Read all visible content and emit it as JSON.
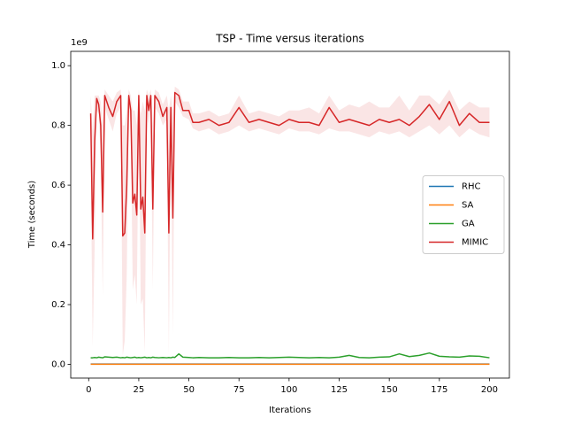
{
  "chart_data": {
    "type": "line",
    "title": "TSP - Time versus iterations",
    "x_label": "Iterations",
    "y_label": "Time (seconds)",
    "y_offset_label": "1e9",
    "xlim": [
      -8.95,
      209.95
    ],
    "xticks": [
      0,
      25,
      50,
      75,
      100,
      125,
      150,
      175,
      200
    ],
    "ylim": [
      -0.046,
      1.048
    ],
    "yticks": [
      {
        "value": 0,
        "label": "0.0"
      },
      0.2,
      0.4,
      0.6,
      0.8,
      {
        "value": 1,
        "label": "1.0"
      }
    ],
    "legend": "center right",
    "x": [
      1,
      2,
      3,
      4,
      5,
      6,
      7,
      8,
      10,
      12,
      14,
      16,
      17,
      18,
      19,
      20,
      21,
      22,
      23,
      24,
      25,
      26,
      27,
      28,
      29,
      30,
      31,
      32,
      33,
      35,
      37,
      39,
      40,
      41,
      42,
      43,
      45,
      47,
      50,
      52,
      55,
      60,
      65,
      70,
      75,
      80,
      85,
      90,
      95,
      100,
      105,
      110,
      115,
      120,
      125,
      130,
      135,
      140,
      145,
      150,
      155,
      160,
      165,
      170,
      175,
      180,
      185,
      190,
      195,
      200
    ],
    "series": [
      {
        "name": "RHC",
        "color": "#1f77b4",
        "values": [
          0.001,
          0.001,
          0.001,
          0.001,
          0.001,
          0.001,
          0.001,
          0.001,
          0.001,
          0.001,
          0.001,
          0.001,
          0.001,
          0.001,
          0.001,
          0.001,
          0.001,
          0.001,
          0.001,
          0.001,
          0.001,
          0.001,
          0.001,
          0.001,
          0.001,
          0.001,
          0.001,
          0.001,
          0.001,
          0.001,
          0.001,
          0.001,
          0.001,
          0.001,
          0.001,
          0.001,
          0.001,
          0.001,
          0.001,
          0.001,
          0.001,
          0.001,
          0.001,
          0.001,
          0.001,
          0.001,
          0.001,
          0.001,
          0.001,
          0.001,
          0.001,
          0.001,
          0.001,
          0.001,
          0.001,
          0.001,
          0.001,
          0.001,
          0.001,
          0.001,
          0.001,
          0.001,
          0.001,
          0.001,
          0.001,
          0.001,
          0.001,
          0.001,
          0.001,
          0.001
        ]
      },
      {
        "name": "SA",
        "color": "#ff7f0e",
        "values": [
          0.0005,
          0.0005,
          0.0005,
          0.0005,
          0.0005,
          0.0005,
          0.0005,
          0.0005,
          0.0005,
          0.0005,
          0.0005,
          0.0005,
          0.0005,
          0.0005,
          0.0005,
          0.0005,
          0.0005,
          0.0005,
          0.0005,
          0.0005,
          0.0005,
          0.0005,
          0.0005,
          0.0005,
          0.0005,
          0.0005,
          0.0005,
          0.0005,
          0.0005,
          0.0005,
          0.0005,
          0.0005,
          0.0005,
          0.0005,
          0.0005,
          0.0005,
          0.0005,
          0.0005,
          0.0005,
          0.0005,
          0.0005,
          0.0005,
          0.0005,
          0.0005,
          0.0005,
          0.0005,
          0.0005,
          0.0005,
          0.0005,
          0.0005,
          0.0005,
          0.0005,
          0.0005,
          0.0005,
          0.0005,
          0.0005,
          0.0005,
          0.0005,
          0.0005,
          0.0005,
          0.0005,
          0.0005,
          0.0005,
          0.0005,
          0.0005,
          0.0005,
          0.0005,
          0.0005,
          0.0005,
          0.0005
        ]
      },
      {
        "name": "GA",
        "color": "#2ca02c",
        "values": [
          0.022,
          0.022,
          0.023,
          0.022,
          0.024,
          0.023,
          0.022,
          0.025,
          0.024,
          0.023,
          0.024,
          0.022,
          0.023,
          0.022,
          0.024,
          0.023,
          0.022,
          0.023,
          0.024,
          0.022,
          0.023,
          0.022,
          0.023,
          0.024,
          0.022,
          0.023,
          0.022,
          0.024,
          0.023,
          0.022,
          0.023,
          0.022,
          0.023,
          0.022,
          0.024,
          0.023,
          0.035,
          0.024,
          0.023,
          0.022,
          0.023,
          0.022,
          0.022,
          0.023,
          0.022,
          0.022,
          0.023,
          0.022,
          0.023,
          0.024,
          0.023,
          0.022,
          0.023,
          0.022,
          0.024,
          0.03,
          0.023,
          0.022,
          0.024,
          0.025,
          0.035,
          0.026,
          0.03,
          0.038,
          0.027,
          0.025,
          0.024,
          0.028,
          0.027,
          0.022
        ]
      },
      {
        "name": "MIMIC",
        "color": "#d62728",
        "values": [
          0.84,
          0.42,
          0.75,
          0.89,
          0.87,
          0.8,
          0.51,
          0.9,
          0.86,
          0.83,
          0.88,
          0.9,
          0.43,
          0.44,
          0.6,
          0.9,
          0.85,
          0.54,
          0.57,
          0.5,
          0.9,
          0.52,
          0.56,
          0.44,
          0.9,
          0.85,
          0.9,
          0.52,
          0.9,
          0.88,
          0.83,
          0.86,
          0.44,
          0.86,
          0.49,
          0.91,
          0.9,
          0.85,
          0.85,
          0.81,
          0.81,
          0.82,
          0.8,
          0.81,
          0.86,
          0.81,
          0.82,
          0.81,
          0.8,
          0.82,
          0.81,
          0.81,
          0.8,
          0.86,
          0.81,
          0.82,
          0.81,
          0.8,
          0.82,
          0.81,
          0.82,
          0.8,
          0.83,
          0.87,
          0.82,
          0.88,
          0.8,
          0.84,
          0.81,
          0.81
        ],
        "lower": [
          0.7,
          0.06,
          0.4,
          0.85,
          0.84,
          0.7,
          0.23,
          0.86,
          0.82,
          0.78,
          0.84,
          0.86,
          0.03,
          0.08,
          0.3,
          0.86,
          0.8,
          0.25,
          0.3,
          0.2,
          0.86,
          0.2,
          0.22,
          0.04,
          0.86,
          0.8,
          0.86,
          0.25,
          0.86,
          0.84,
          0.8,
          0.82,
          0.03,
          0.82,
          0.1,
          0.88,
          0.86,
          0.83,
          0.82,
          0.79,
          0.78,
          0.79,
          0.77,
          0.78,
          0.8,
          0.78,
          0.79,
          0.78,
          0.77,
          0.79,
          0.78,
          0.78,
          0.77,
          0.79,
          0.78,
          0.78,
          0.77,
          0.76,
          0.78,
          0.77,
          0.78,
          0.76,
          0.78,
          0.8,
          0.77,
          0.8,
          0.76,
          0.79,
          0.77,
          0.76
        ],
        "upper": [
          0.9,
          0.78,
          0.9,
          0.9,
          0.9,
          0.88,
          0.8,
          0.92,
          0.9,
          0.88,
          0.91,
          0.92,
          0.8,
          0.8,
          0.85,
          0.92,
          0.9,
          0.85,
          0.85,
          0.8,
          0.92,
          0.84,
          0.88,
          0.85,
          0.92,
          0.9,
          0.92,
          0.8,
          0.92,
          0.91,
          0.87,
          0.9,
          0.85,
          0.9,
          0.85,
          0.93,
          0.92,
          0.88,
          0.88,
          0.84,
          0.84,
          0.85,
          0.83,
          0.84,
          0.9,
          0.84,
          0.85,
          0.84,
          0.83,
          0.85,
          0.85,
          0.86,
          0.84,
          0.9,
          0.85,
          0.87,
          0.86,
          0.88,
          0.86,
          0.86,
          0.9,
          0.85,
          0.9,
          0.9,
          0.87,
          0.92,
          0.85,
          0.88,
          0.86,
          0.86
        ]
      }
    ]
  }
}
